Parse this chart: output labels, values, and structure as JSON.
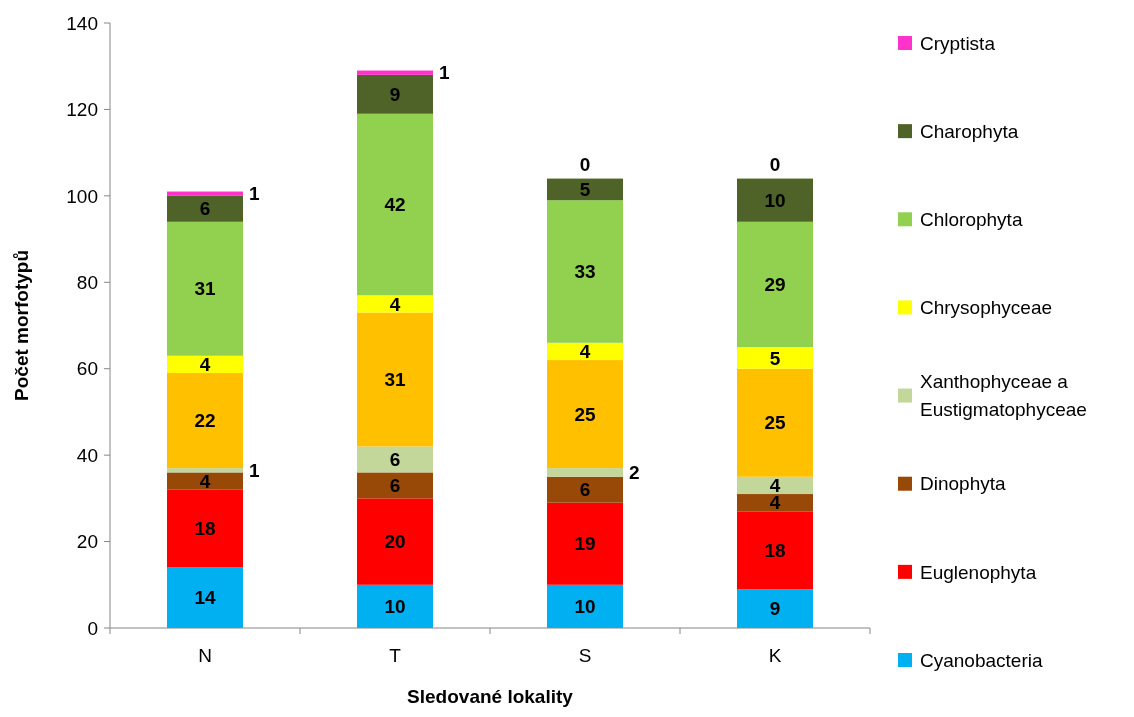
{
  "chart_data": {
    "type": "bar",
    "stacked": true,
    "categories": [
      "N",
      "T",
      "S",
      "K"
    ],
    "xlabel": "Sledované lokality",
    "ylabel": "Počet morfotypů",
    "ylim": [
      0,
      140
    ],
    "yticks": [
      0,
      20,
      40,
      60,
      80,
      100,
      120,
      140
    ],
    "grid": false,
    "legend": "right",
    "data_labels": true,
    "series": [
      {
        "name": "Cyanobacteria",
        "color": "#00b0f0",
        "values": [
          14,
          10,
          10,
          9
        ]
      },
      {
        "name": "Euglenophyta",
        "color": "#ff0000",
        "values": [
          18,
          20,
          19,
          18
        ]
      },
      {
        "name": "Dinophyta",
        "color": "#984807",
        "values": [
          4,
          6,
          6,
          4
        ]
      },
      {
        "name": "Xanthophyceae a Eustigmatophyceae",
        "color": "#c4d79b",
        "values": [
          1,
          6,
          2,
          4
        ]
      },
      {
        "color": "#ffc000",
        "values": [
          22,
          31,
          25,
          25
        ]
      },
      {
        "name": "Chrysophyceae",
        "color": "#ffff00",
        "values": [
          4,
          4,
          4,
          5
        ]
      },
      {
        "name": "Chlorophyta",
        "color": "#92d050",
        "values": [
          31,
          42,
          33,
          29
        ]
      },
      {
        "name": "Charophyta",
        "color": "#4f6228",
        "values": [
          6,
          9,
          5,
          10
        ]
      },
      {
        "name": "Cryptista",
        "color": "#ff33cc",
        "values": [
          1,
          1,
          0,
          0
        ]
      }
    ]
  }
}
